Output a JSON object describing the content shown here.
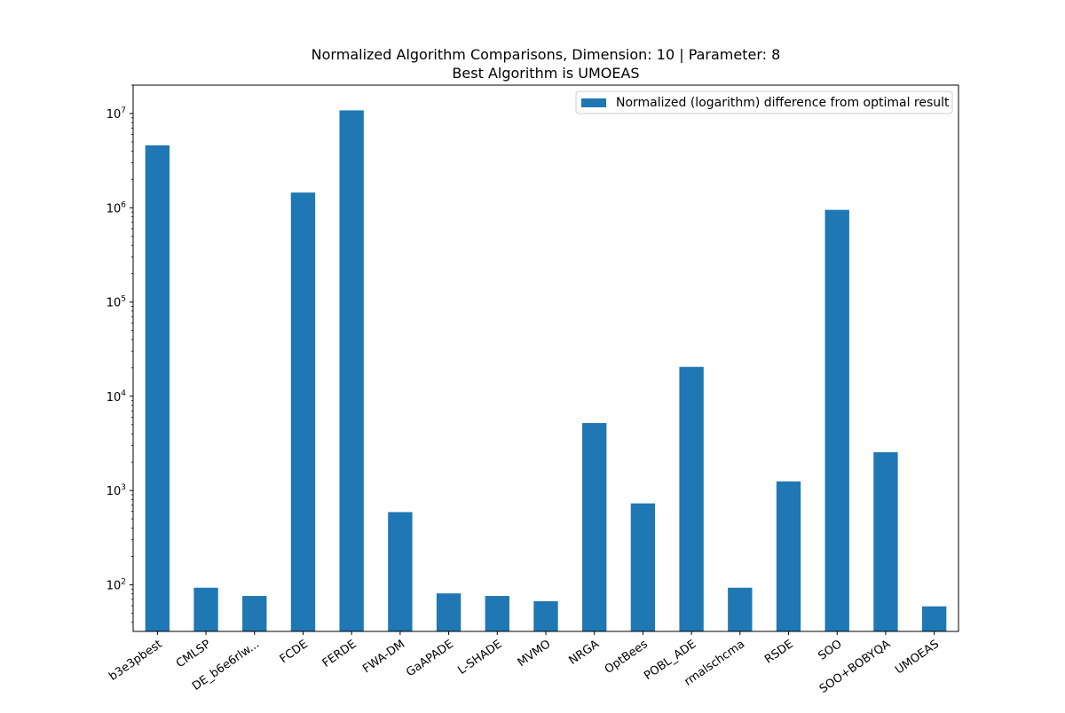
{
  "chart_data": {
    "type": "bar",
    "title": "Normalized Algorithm Comparisons, Dimension: 10 | Parameter: 8",
    "subtitle": "Best Algorithm is UMOEAS",
    "xlabel": "",
    "ylabel": "",
    "yscale": "log",
    "ylim": [
      32,
      20000000
    ],
    "y_ticks": [
      {
        "value": 100,
        "base": "10",
        "exp": "2"
      },
      {
        "value": 1000,
        "base": "10",
        "exp": "3"
      },
      {
        "value": 10000,
        "base": "10",
        "exp": "4"
      },
      {
        "value": 100000,
        "base": "10",
        "exp": "5"
      },
      {
        "value": 1000000,
        "base": "10",
        "exp": "6"
      },
      {
        "value": 10000000,
        "base": "10",
        "exp": "7"
      }
    ],
    "grid": false,
    "legend_position": "top-right",
    "bar_color": "#1f77b4",
    "categories": [
      "b3e3pbest",
      "CMLSP",
      "DE_b6e6rlw...",
      "FCDE",
      "FERDE",
      "FWA-DM",
      "GaAPADE",
      "L-SHADE",
      "MVMO",
      "NRGA",
      "OptBees",
      "POBL_ADE",
      "rmalschcma",
      "RSDE",
      "SOO",
      "SOO+BOBYQA",
      "UMOEAS"
    ],
    "series": [
      {
        "name": "Normalized (logarithm) difference from optimal result",
        "values": [
          4600000,
          93,
          76,
          1450000,
          10800000,
          590,
          81,
          76,
          67,
          5200,
          730,
          20500,
          93,
          1250,
          950000,
          2550,
          59
        ]
      }
    ]
  }
}
